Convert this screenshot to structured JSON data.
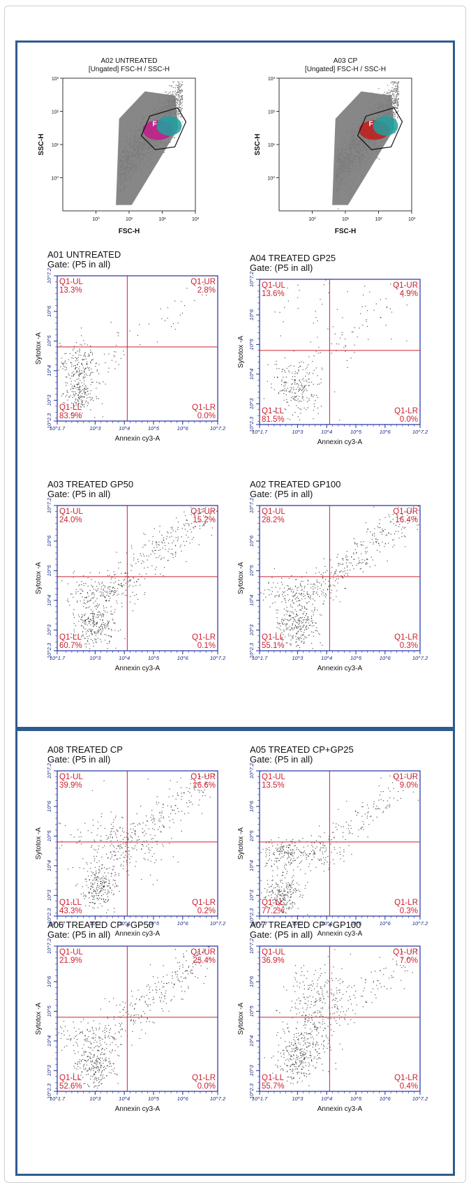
{
  "colors": {
    "frame": "#2e5b8f",
    "quadrant_line": "#cc2030",
    "quadrant_label": "#cc2030",
    "plot_border": "#2030a0",
    "dots": "#1a1a1a",
    "scatter_gray": "#7a7a7a"
  },
  "chart_data": [
    {
      "id": "fsc-a02",
      "type": "scatter",
      "title": "A02 UNTREATED",
      "subtitle": "[Ungated] FSC-H / SSC-H",
      "xlabel": "FSC-H",
      "ylabel": "SSC-H",
      "x_ticks": [
        "10⁰",
        "10¹",
        "10²",
        "10³"
      ],
      "y_ticks": [
        "10⁰",
        "10¹",
        "10²",
        "10³"
      ],
      "xlim": [
        0.1,
        1000
      ],
      "ylim": [
        0.1,
        1000
      ],
      "scale": "log",
      "gate_label": "F"
    },
    {
      "id": "fsc-a03",
      "type": "scatter",
      "title": "A03 CP",
      "subtitle": "[Ungated] FSC-H / SSC-H",
      "xlabel": "FSC-H",
      "ylabel": "SSC-H",
      "x_ticks": [
        "10⁰",
        "10¹",
        "10²",
        "10³"
      ],
      "y_ticks": [
        "10⁰",
        "10¹",
        "10²",
        "10³"
      ],
      "xlim": [
        0.1,
        1000
      ],
      "ylim": [
        0.1,
        1000
      ],
      "scale": "log",
      "gate_label": "F"
    },
    {
      "id": "q-a01",
      "type": "scatter",
      "title": "A01 UNTREATED",
      "gate": "Gate: (P5 in all)",
      "xlabel": "Annexin cy3-A",
      "ylabel": "Sytotox -A",
      "x_ticks": [
        "10^1.7",
        "10^3",
        "10^4",
        "10^5",
        "10^6",
        "10^7.2"
      ],
      "y_ticks": [
        "10^2.3",
        "10^3",
        "10^4",
        "10^5",
        "10^6",
        "10^7.2"
      ],
      "xlim": [
        1.7,
        7.2
      ],
      "ylim": [
        2.3,
        7.2
      ],
      "quadrants": {
        "UL": {
          "label": "Q1-UL",
          "value": "13.3%"
        },
        "UR": {
          "label": "Q1-UR",
          "value": "2.8%"
        },
        "LL": {
          "label": "Q1-LL",
          "value": "83.9%"
        },
        "LR": {
          "label": "Q1-LR",
          "value": "0.0%"
        }
      }
    },
    {
      "id": "q-a04",
      "type": "scatter",
      "title": "A04 TREATED GP25",
      "gate": "Gate: (P5 in all)",
      "xlabel": "Annexin cy3-A",
      "ylabel": "Sytotox -A",
      "x_ticks": [
        "10^1.7",
        "10^3",
        "10^4",
        "10^5",
        "10^6",
        "10^7.2"
      ],
      "y_ticks": [
        "10^2.3",
        "10^3",
        "10^4",
        "10^5",
        "10^6",
        "10^7.2"
      ],
      "xlim": [
        1.7,
        7.2
      ],
      "ylim": [
        2.3,
        7.2
      ],
      "quadrants": {
        "UL": {
          "label": "Q1-UL",
          "value": "13.6%"
        },
        "UR": {
          "label": "Q1-UR",
          "value": "4.9%"
        },
        "LL": {
          "label": "Q1-LL",
          "value": "81.5%"
        },
        "LR": {
          "label": "Q1-LR",
          "value": "0.0%"
        }
      }
    },
    {
      "id": "q-a03",
      "type": "scatter",
      "title": "A03 TREATED GP50",
      "gate": "Gate: (P5 in all)",
      "xlabel": "Annexin cy3-A",
      "ylabel": "Sytotox -A",
      "x_ticks": [
        "10^1.7",
        "10^3",
        "10^4",
        "10^5",
        "10^6",
        "10^7.2"
      ],
      "y_ticks": [
        "10^2.3",
        "10^3",
        "10^4",
        "10^5",
        "10^6",
        "10^7.2"
      ],
      "xlim": [
        1.7,
        7.2
      ],
      "ylim": [
        2.3,
        7.2
      ],
      "quadrants": {
        "UL": {
          "label": "Q1-UL",
          "value": "24.0%"
        },
        "UR": {
          "label": "Q1-UR",
          "value": "15.2%"
        },
        "LL": {
          "label": "Q1-LL",
          "value": "60.7%"
        },
        "LR": {
          "label": "Q1-LR",
          "value": "0.1%"
        }
      }
    },
    {
      "id": "q-a02",
      "type": "scatter",
      "title": "A02 TREATED GP100",
      "gate": "Gate: (P5 in all)",
      "xlabel": "Annexin cy3-A",
      "ylabel": "Sytotox -A",
      "x_ticks": [
        "10^1.7",
        "10^3",
        "10^4",
        "10^5",
        "10^6",
        "10^7.2"
      ],
      "y_ticks": [
        "10^2.3",
        "10^3",
        "10^4",
        "10^5",
        "10^6",
        "10^7.2"
      ],
      "xlim": [
        1.7,
        7.2
      ],
      "ylim": [
        2.3,
        7.2
      ],
      "quadrants": {
        "UL": {
          "label": "Q1-UL",
          "value": "28.2%"
        },
        "UR": {
          "label": "Q1-UR",
          "value": "16.4%"
        },
        "LL": {
          "label": "Q1-LL",
          "value": "55.1%"
        },
        "LR": {
          "label": "Q1-LR",
          "value": "0.3%"
        }
      }
    },
    {
      "id": "q-a08",
      "type": "scatter",
      "title": "A08 TREATED CP",
      "gate": "Gate: (P5 in all)",
      "xlabel": "Annexin cy3-A",
      "ylabel": "Sytotox -A",
      "x_ticks": [
        "10^1.7",
        "10^3",
        "10^4",
        "10^5",
        "10^6",
        "10^7.2"
      ],
      "y_ticks": [
        "10^2.3",
        "10^3",
        "10^4",
        "10^5",
        "10^6",
        "10^7.2"
      ],
      "xlim": [
        1.7,
        7.2
      ],
      "ylim": [
        2.3,
        7.2
      ],
      "quadrants": {
        "UL": {
          "label": "Q1-UL",
          "value": "39.9%"
        },
        "UR": {
          "label": "Q1-UR",
          "value": "16.6%"
        },
        "LL": {
          "label": "Q1-LL",
          "value": "43.3%"
        },
        "LR": {
          "label": "Q1-LR",
          "value": "0.2%"
        }
      }
    },
    {
      "id": "q-a05",
      "type": "scatter",
      "title": "A05 TREATED CP+GP25",
      "gate": "Gate: (P5 in all)",
      "xlabel": "Annexin cy3-A",
      "ylabel": "Sytotox -A",
      "x_ticks": [
        "10^1.7",
        "10^3",
        "10^4",
        "10^5",
        "10^6",
        "10^7.2"
      ],
      "y_ticks": [
        "10^2.3",
        "10^3",
        "10^4",
        "10^5",
        "10^6",
        "10^7.2"
      ],
      "xlim": [
        1.7,
        7.2
      ],
      "ylim": [
        2.3,
        7.2
      ],
      "quadrants": {
        "UL": {
          "label": "Q1-UL",
          "value": "13.5%"
        },
        "UR": {
          "label": "Q1-UR",
          "value": "9.0%"
        },
        "LL": {
          "label": "Q1-LL",
          "value": "77.2%"
        },
        "LR": {
          "label": "Q1-LR",
          "value": "0.3%"
        }
      }
    },
    {
      "id": "q-a06",
      "type": "scatter",
      "title": "A06 TREATED CP +GP50",
      "gate": "Gate: (P5 in all)",
      "xlabel": "Annexin cy3-A",
      "ylabel": "Sytotox -A",
      "x_ticks": [
        "10^1.7",
        "10^3",
        "10^4",
        "10^5",
        "10^6",
        "10^7.2"
      ],
      "y_ticks": [
        "10^2.3",
        "10^3",
        "10^4",
        "10^5",
        "10^6",
        "10^7.2"
      ],
      "xlim": [
        1.7,
        7.2
      ],
      "ylim": [
        2.3,
        7.2
      ],
      "quadrants": {
        "UL": {
          "label": "Q1-UL",
          "value": "21.9%"
        },
        "UR": {
          "label": "Q1-UR",
          "value": "25.4%"
        },
        "LL": {
          "label": "Q1-LL",
          "value": "52.6%"
        },
        "LR": {
          "label": "Q1-LR",
          "value": "0.0%"
        }
      }
    },
    {
      "id": "q-a07",
      "type": "scatter",
      "title": "A07 TREATED CP +GP100",
      "gate": "Gate: (P5 in all)",
      "xlabel": "Annexin cy3-A",
      "ylabel": "Sytotox -A",
      "x_ticks": [
        "10^1.7",
        "10^3",
        "10^4",
        "10^5",
        "10^6",
        "10^7.2"
      ],
      "y_ticks": [
        "10^2.3",
        "10^3",
        "10^4",
        "10^5",
        "10^6",
        "10^7.2"
      ],
      "xlim": [
        1.7,
        7.2
      ],
      "ylim": [
        2.3,
        7.2
      ],
      "quadrants": {
        "UL": {
          "label": "Q1-UL",
          "value": "36.9%"
        },
        "UR": {
          "label": "Q1-UR",
          "value": "7.0%"
        },
        "LL": {
          "label": "Q1-LL",
          "value": "55.7%"
        },
        "LR": {
          "label": "Q1-LR",
          "value": "0.4%"
        }
      }
    }
  ]
}
